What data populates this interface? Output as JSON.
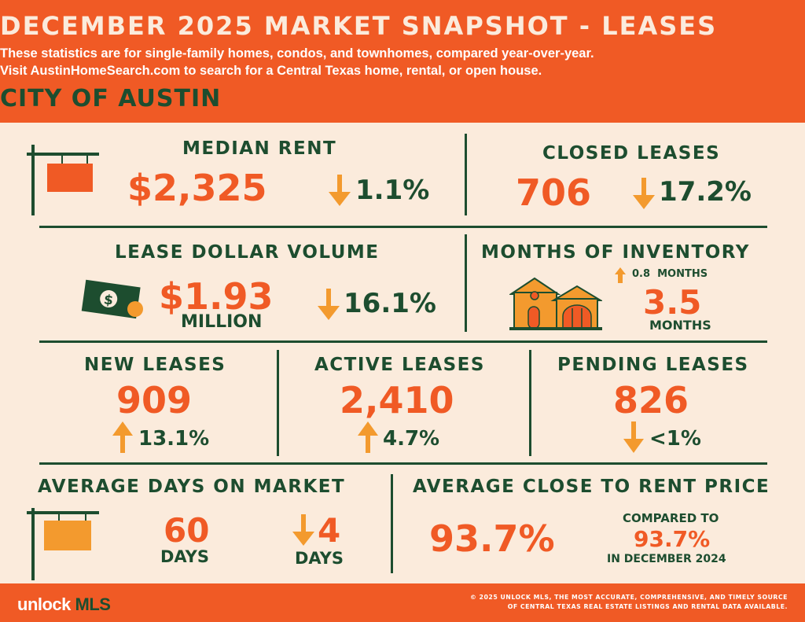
{
  "header": {
    "title": "DECEMBER 2025 MARKET SNAPSHOT - LEASES",
    "subtitle_line1": "These statistics are for single-family homes, condos, and townhomes, compared year-over-year.",
    "subtitle_line2": "Visit AustinHomeSearch.com to search for a Central Texas home, rental, or open house.",
    "city": "CITY OF AUSTIN"
  },
  "median_rent": {
    "label": "MEDIAN RENT",
    "value": "$2,325",
    "change": "1.1%",
    "direction": "down"
  },
  "closed_leases": {
    "label": "CLOSED LEASES",
    "value": "706",
    "change": "17.2%",
    "direction": "down"
  },
  "lease_dollar_volume": {
    "label": "LEASE DOLLAR VOLUME",
    "value": "$1.93",
    "unit": "MILLION",
    "change": "16.1%",
    "direction": "down",
    "bill_symbol": "$"
  },
  "months_of_inventory": {
    "label": "MONTHS OF INVENTORY",
    "change": "0.8  MONTHS",
    "direction": "up",
    "value": "3.5",
    "unit": "MONTHS"
  },
  "new_leases": {
    "label": "NEW LEASES",
    "value": "909",
    "change": "13.1%",
    "direction": "up"
  },
  "active_leases": {
    "label": "ACTIVE LEASES",
    "value": "2,410",
    "change": "4.7%",
    "direction": "up"
  },
  "pending_leases": {
    "label": "PENDING LEASES",
    "value": "826",
    "change": "<1%",
    "direction": "down"
  },
  "avg_days_on_market": {
    "label": "AVERAGE DAYS ON MARKET",
    "value": "60",
    "unit": "DAYS",
    "change": "4",
    "change_unit": "DAYS",
    "direction": "down"
  },
  "avg_close_to_rent": {
    "label": "AVERAGE CLOSE TO RENT PRICE",
    "value": "93.7%",
    "compared_label": "COMPARED TO",
    "compared_value": "93.7%",
    "compared_period": "IN DECEMBER 2024"
  },
  "footer": {
    "logo_part1": "unlock ",
    "logo_part2": "MLS",
    "note_line1": "© 2025 UNLOCK MLS, THE MOST ACCURATE, COMPREHENSIVE, AND TIMELY SOURCE",
    "note_line2": "OF CENTRAL TEXAS REAL ESTATE LISTINGS AND RENTAL DATA AVAILABLE."
  },
  "colors": {
    "orange": "#f05a25",
    "arrow_orange": "#f39a2e",
    "green": "#1d4d2f",
    "cream": "#fbebdc"
  }
}
